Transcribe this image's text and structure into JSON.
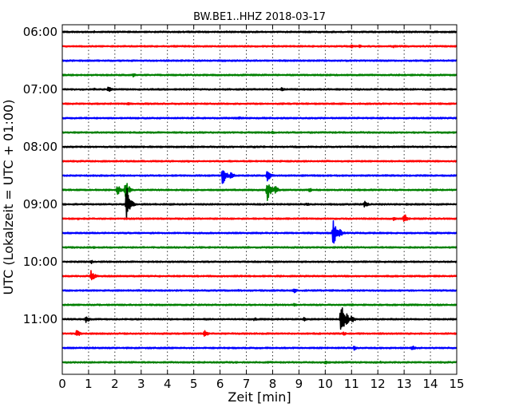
{
  "chart_data": {
    "type": "line",
    "title": "BW.BE1..HHZ 2018-03-17",
    "xlabel": "Zeit  [min]",
    "ylabel": "UTC (Lokalzeit = UTC + 01:00)",
    "xlim": [
      0,
      15
    ],
    "x_ticks": [
      0,
      1,
      2,
      3,
      4,
      5,
      6,
      7,
      8,
      9,
      10,
      11,
      12,
      13,
      14,
      15
    ],
    "x_tick_labels": [
      "0",
      "1",
      "2",
      "3",
      "4",
      "5",
      "6",
      "7",
      "8",
      "9",
      "10",
      "11",
      "12",
      "13",
      "14",
      "15"
    ],
    "vertical_grid": "dotted",
    "row_start": "06:00",
    "row_interval_minutes": 15,
    "hour_labels": [
      {
        "row": 0,
        "label": "06:00"
      },
      {
        "row": 4,
        "label": "07:00"
      },
      {
        "row": 8,
        "label": "08:00"
      },
      {
        "row": 12,
        "label": "09:00"
      },
      {
        "row": 16,
        "label": "10:00"
      },
      {
        "row": 20,
        "label": "11:00"
      }
    ],
    "row_colors": [
      "#000000",
      "#ff0000",
      "#0000ff",
      "#008000"
    ],
    "series": [
      {
        "row": 0,
        "events": [
          [
            0.3,
            1
          ],
          [
            1.2,
            1.5
          ],
          [
            2.1,
            1
          ],
          [
            6.8,
            1
          ],
          [
            9.6,
            1
          ],
          [
            11.2,
            1
          ]
        ]
      },
      {
        "row": 1,
        "events": [
          [
            11.0,
            2.5
          ],
          [
            11.3,
            2
          ],
          [
            12.6,
            2
          ]
        ]
      },
      {
        "row": 2,
        "events": [
          [
            3.4,
            1
          ],
          [
            8.3,
            1
          ]
        ]
      },
      {
        "row": 3,
        "events": [
          [
            2.7,
            2.5
          ],
          [
            0.5,
            1
          ]
        ]
      },
      {
        "row": 4,
        "events": [
          [
            1.2,
            2
          ],
          [
            1.75,
            4
          ],
          [
            8.35,
            3
          ]
        ]
      },
      {
        "row": 5,
        "events": [
          [
            2.5,
            2
          ],
          [
            3.2,
            1.5
          ]
        ]
      },
      {
        "row": 6,
        "events": [
          [
            6.7,
            3
          ],
          [
            3.6,
            1.2
          ]
        ]
      },
      {
        "row": 7,
        "events": [
          [
            8.0,
            2
          ],
          [
            8.4,
            1.5
          ]
        ]
      },
      {
        "row": 8,
        "events": [
          [
            7.3,
            1.5
          ],
          [
            8.6,
            1
          ]
        ]
      },
      {
        "row": 9,
        "events": [
          [
            4.8,
            1.5
          ],
          [
            10.6,
            1
          ]
        ]
      },
      {
        "row": 10,
        "events": [
          [
            6.1,
            13
          ],
          [
            6.4,
            5
          ],
          [
            7.8,
            8
          ],
          [
            4.2,
            1
          ]
        ]
      },
      {
        "row": 11,
        "events": [
          [
            2.1,
            8
          ],
          [
            2.4,
            14
          ],
          [
            7.8,
            16
          ],
          [
            8.1,
            6
          ],
          [
            9.4,
            3
          ],
          [
            14.1,
            1.5
          ]
        ]
      },
      {
        "row": 12,
        "events": [
          [
            2.45,
            26
          ],
          [
            9.3,
            2
          ],
          [
            11.5,
            5
          ],
          [
            13.1,
            1.5
          ]
        ]
      },
      {
        "row": 13,
        "events": [
          [
            13.0,
            7
          ],
          [
            12.6,
            2.5
          ],
          [
            0.6,
            1.5
          ]
        ]
      },
      {
        "row": 14,
        "events": [
          [
            10.3,
            18
          ],
          [
            10.5,
            8
          ],
          [
            14.2,
            1.5
          ]
        ]
      },
      {
        "row": 15,
        "events": [
          [
            1.2,
            2
          ],
          [
            4.8,
            1
          ],
          [
            11.2,
            1
          ]
        ]
      },
      {
        "row": 16,
        "events": [
          [
            1.1,
            2.5
          ],
          [
            5.6,
            1
          ],
          [
            12.4,
            1
          ]
        ]
      },
      {
        "row": 17,
        "events": [
          [
            1.1,
            8
          ],
          [
            4.6,
            1.5
          ]
        ]
      },
      {
        "row": 18,
        "events": [
          [
            8.8,
            4
          ],
          [
            6.7,
            1.5
          ],
          [
            13.3,
            1
          ]
        ]
      },
      {
        "row": 19,
        "events": [
          [
            8.8,
            2.5
          ],
          [
            11.0,
            1.5
          ],
          [
            13.0,
            2
          ]
        ]
      },
      {
        "row": 20,
        "events": [
          [
            0.9,
            5
          ],
          [
            7.3,
            2.5
          ],
          [
            9.2,
            3
          ],
          [
            10.6,
            24
          ],
          [
            10.8,
            10
          ],
          [
            11.0,
            5
          ],
          [
            14.5,
            1.5
          ]
        ]
      },
      {
        "row": 21,
        "events": [
          [
            0.55,
            5
          ],
          [
            5.4,
            5
          ],
          [
            10.7,
            2.5
          ]
        ]
      },
      {
        "row": 22,
        "events": [
          [
            11.1,
            3
          ],
          [
            13.3,
            3.5
          ],
          [
            8.9,
            1
          ]
        ]
      },
      {
        "row": 23,
        "events": [
          [
            10.0,
            2.5
          ],
          [
            13.4,
            2
          ],
          [
            12.1,
            1.5
          ]
        ]
      }
    ]
  }
}
